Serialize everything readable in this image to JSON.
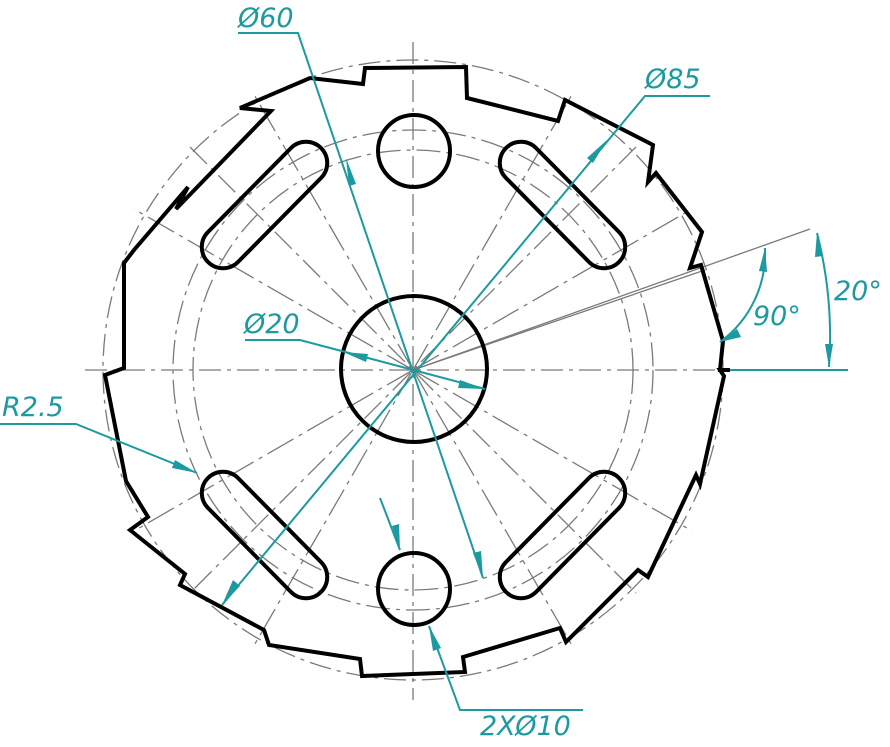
{
  "drawing": {
    "dimensions": {
      "d60": "Ø60",
      "d85": "Ø85",
      "d20": "Ø20",
      "r25": "R2.5",
      "deg20": "20°",
      "deg90": "90°",
      "holes": "2XØ10"
    },
    "colors": {
      "outline": "#000000",
      "centerline": "#7a7a7a",
      "dimension": "#1b9aa0"
    }
  }
}
